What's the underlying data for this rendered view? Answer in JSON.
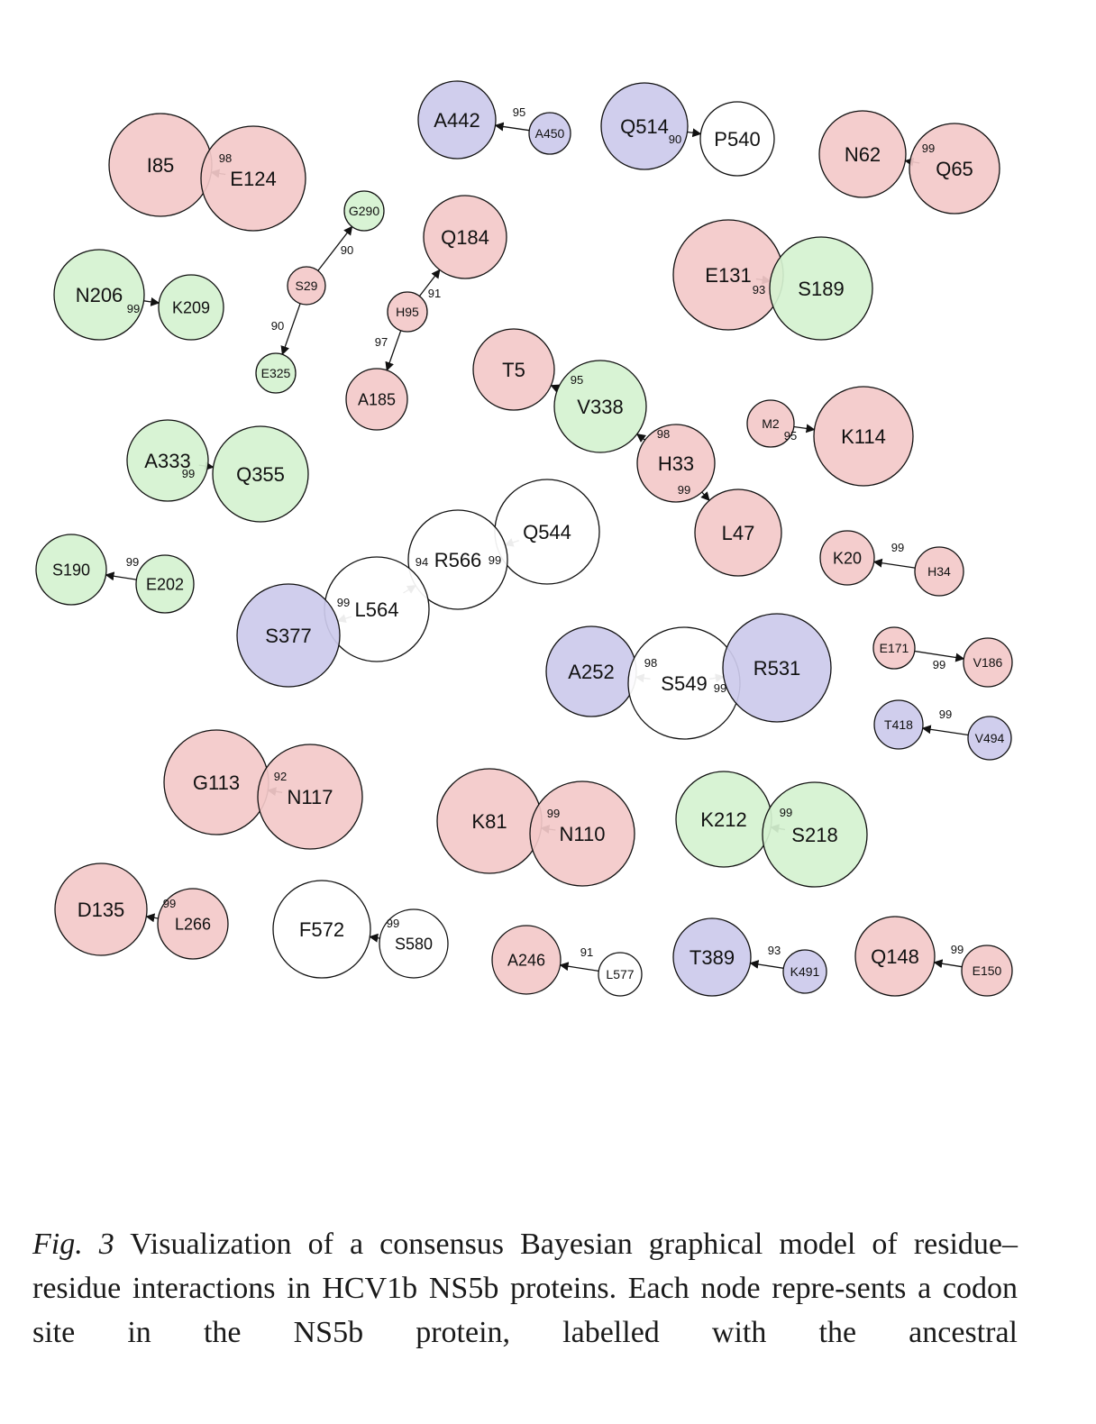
{
  "colors": {
    "red": "#f3c9c9",
    "green": "#d5f2d0",
    "blue": "#cccaec",
    "white": "#ffffff",
    "stroke": "#111111"
  },
  "nodes": [
    {
      "id": "I85",
      "color": "red"
    },
    {
      "id": "E124",
      "color": "red"
    },
    {
      "id": "A442",
      "color": "blue"
    },
    {
      "id": "A450",
      "color": "blue"
    },
    {
      "id": "Q514",
      "color": "blue"
    },
    {
      "id": "P540",
      "color": "white"
    },
    {
      "id": "N62",
      "color": "red"
    },
    {
      "id": "Q65",
      "color": "red"
    },
    {
      "id": "G290",
      "color": "green"
    },
    {
      "id": "S29",
      "color": "red"
    },
    {
      "id": "E325",
      "color": "green"
    },
    {
      "id": "Q184",
      "color": "red"
    },
    {
      "id": "H95",
      "color": "red"
    },
    {
      "id": "A185",
      "color": "red"
    },
    {
      "id": "E131",
      "color": "red"
    },
    {
      "id": "S189",
      "color": "green"
    },
    {
      "id": "N206",
      "color": "green"
    },
    {
      "id": "K209",
      "color": "green"
    },
    {
      "id": "T5",
      "color": "red"
    },
    {
      "id": "V338",
      "color": "green"
    },
    {
      "id": "H33",
      "color": "red"
    },
    {
      "id": "L47",
      "color": "red"
    },
    {
      "id": "M2",
      "color": "red"
    },
    {
      "id": "K114",
      "color": "red"
    },
    {
      "id": "A333",
      "color": "green"
    },
    {
      "id": "Q355",
      "color": "green"
    },
    {
      "id": "Q544",
      "color": "white"
    },
    {
      "id": "R566",
      "color": "white"
    },
    {
      "id": "L564",
      "color": "white"
    },
    {
      "id": "S377",
      "color": "blue"
    },
    {
      "id": "S190",
      "color": "green"
    },
    {
      "id": "E202",
      "color": "green"
    },
    {
      "id": "K20",
      "color": "red"
    },
    {
      "id": "H34",
      "color": "red"
    },
    {
      "id": "A252",
      "color": "blue"
    },
    {
      "id": "S549",
      "color": "white"
    },
    {
      "id": "R531",
      "color": "blue"
    },
    {
      "id": "E171",
      "color": "red"
    },
    {
      "id": "V186",
      "color": "red"
    },
    {
      "id": "T418",
      "color": "blue"
    },
    {
      "id": "V494",
      "color": "blue"
    },
    {
      "id": "G113",
      "color": "red"
    },
    {
      "id": "N117",
      "color": "red"
    },
    {
      "id": "K81",
      "color": "red"
    },
    {
      "id": "N110",
      "color": "red"
    },
    {
      "id": "K212",
      "color": "green"
    },
    {
      "id": "S218",
      "color": "green"
    },
    {
      "id": "D135",
      "color": "red"
    },
    {
      "id": "L266",
      "color": "red"
    },
    {
      "id": "F572",
      "color": "white"
    },
    {
      "id": "S580",
      "color": "white"
    },
    {
      "id": "A246",
      "color": "red"
    },
    {
      "id": "L577",
      "color": "white"
    },
    {
      "id": "T389",
      "color": "blue"
    },
    {
      "id": "K491",
      "color": "blue"
    },
    {
      "id": "Q148",
      "color": "red"
    },
    {
      "id": "E150",
      "color": "red"
    }
  ],
  "edges": [
    {
      "from": "E124",
      "to": "I85",
      "weight": "98"
    },
    {
      "from": "A450",
      "to": "A442",
      "weight": "95"
    },
    {
      "from": "Q514",
      "to": "P540",
      "weight": "90"
    },
    {
      "from": "Q65",
      "to": "N62",
      "weight": "99"
    },
    {
      "from": "S29",
      "to": "G290",
      "weight": "90"
    },
    {
      "from": "S29",
      "to": "E325",
      "weight": "90"
    },
    {
      "from": "H95",
      "to": "Q184",
      "weight": "91"
    },
    {
      "from": "H95",
      "to": "A185",
      "weight": "97"
    },
    {
      "from": "E131",
      "to": "S189",
      "weight": "93"
    },
    {
      "from": "N206",
      "to": "K209",
      "weight": "99"
    },
    {
      "from": "V338",
      "to": "T5",
      "weight": "95"
    },
    {
      "from": "H33",
      "to": "V338",
      "weight": "98"
    },
    {
      "from": "H33",
      "to": "L47",
      "weight": "99"
    },
    {
      "from": "M2",
      "to": "K114",
      "weight": "95"
    },
    {
      "from": "A333",
      "to": "Q355",
      "weight": "99"
    },
    {
      "from": "Q544",
      "to": "R566",
      "weight": "99"
    },
    {
      "from": "L564",
      "to": "R566",
      "weight": "94"
    },
    {
      "from": "L564",
      "to": "S377",
      "weight": "99"
    },
    {
      "from": "E202",
      "to": "S190",
      "weight": "99"
    },
    {
      "from": "H34",
      "to": "K20",
      "weight": "99"
    },
    {
      "from": "S549",
      "to": "A252",
      "weight": "98"
    },
    {
      "from": "S549",
      "to": "R531",
      "weight": "99"
    },
    {
      "from": "E171",
      "to": "V186",
      "weight": "99"
    },
    {
      "from": "V494",
      "to": "T418",
      "weight": "99"
    },
    {
      "from": "N117",
      "to": "G113",
      "weight": "92"
    },
    {
      "from": "N110",
      "to": "K81",
      "weight": "99"
    },
    {
      "from": "S218",
      "to": "K212",
      "weight": "99"
    },
    {
      "from": "L266",
      "to": "D135",
      "weight": "99"
    },
    {
      "from": "S580",
      "to": "F572",
      "weight": "99"
    },
    {
      "from": "L577",
      "to": "A246",
      "weight": "91"
    },
    {
      "from": "K491",
      "to": "T389",
      "weight": "93"
    },
    {
      "from": "E150",
      "to": "Q148",
      "weight": "99"
    }
  ],
  "caption": {
    "label": "Fig. 3",
    "text": "Visualization of a consensus Bayesian graphical model of residue–residue interactions in HCV1b NS5b proteins. Each node repre-sents a codon site in the NS5b protein, labelled with the ancestral"
  }
}
